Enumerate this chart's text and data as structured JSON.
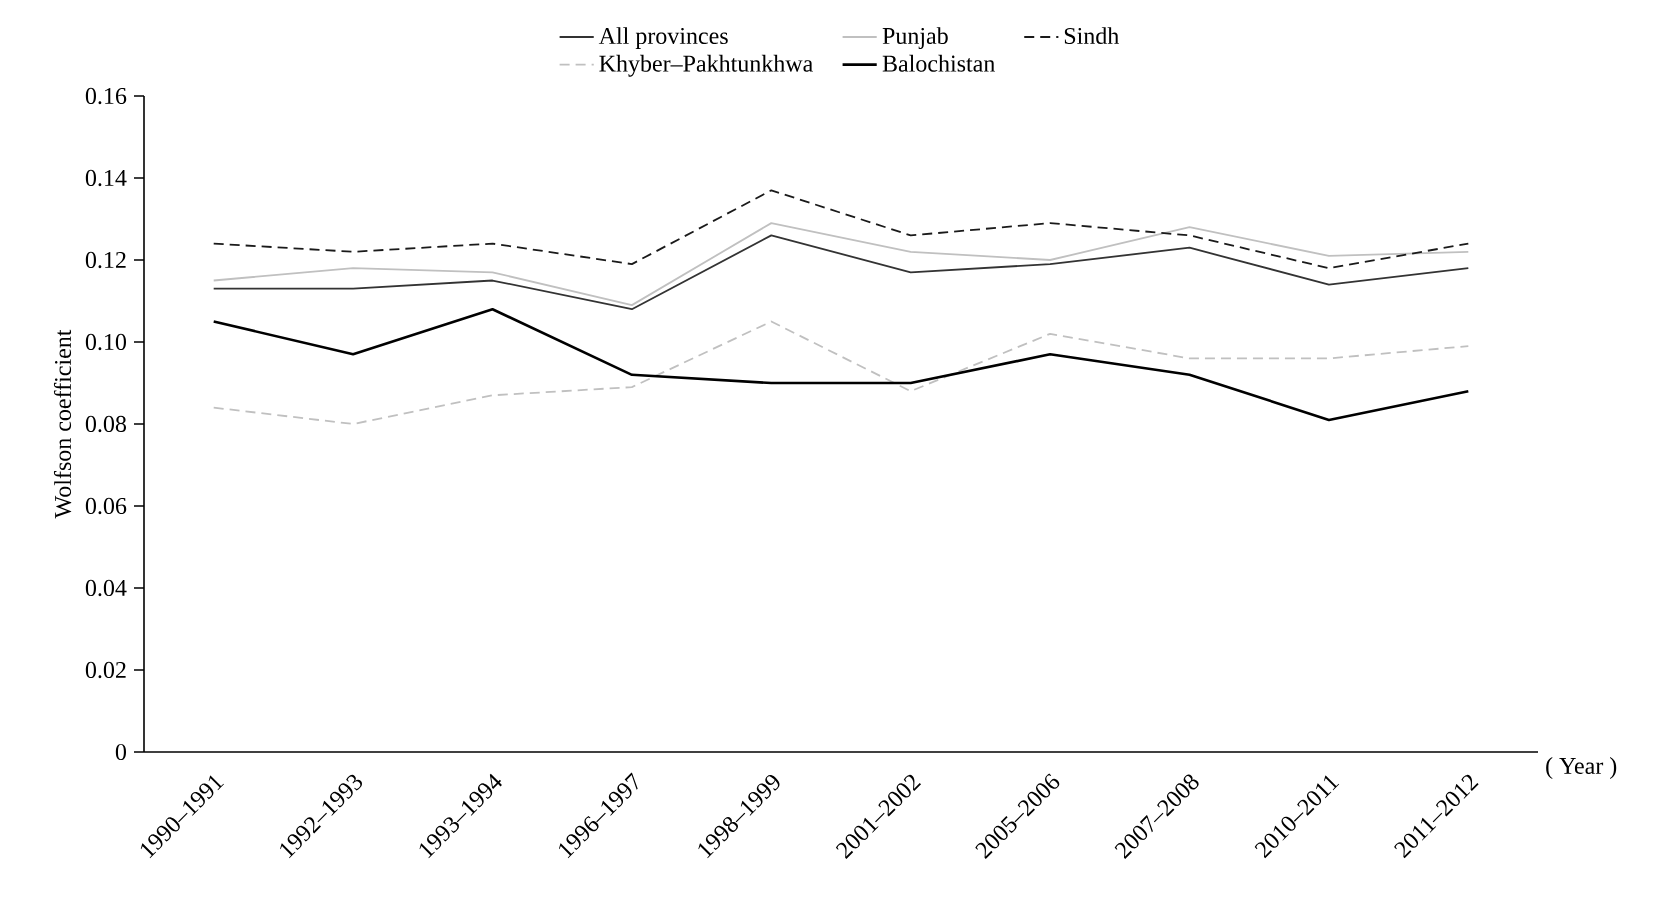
{
  "chart_data": {
    "type": "line",
    "xlabel": "( Year )",
    "ylabel": "Wolfson coefficient",
    "categories": [
      "1990–1991",
      "1992–1993",
      "1993–1994",
      "1996–1997",
      "1998–1999",
      "2001–2002",
      "2005–2006",
      "2007–2008",
      "2010–2011",
      "2011–2012"
    ],
    "series": [
      {
        "name": "All provinces",
        "color": "#333333",
        "line_style": "solid",
        "values": [
          0.113,
          0.113,
          0.115,
          0.108,
          0.126,
          0.117,
          0.119,
          0.123,
          0.114,
          0.118
        ]
      },
      {
        "name": "Punjab",
        "color": "#c0c0c0",
        "line_style": "solid",
        "values": [
          0.115,
          0.118,
          0.117,
          0.109,
          0.129,
          0.122,
          0.12,
          0.128,
          0.121,
          0.122
        ]
      },
      {
        "name": "Sindh",
        "color": "#1a1a1a",
        "line_style": "dashed",
        "values": [
          0.124,
          0.122,
          0.124,
          0.119,
          0.137,
          0.126,
          0.129,
          0.126,
          0.118,
          0.124
        ]
      },
      {
        "name": "Khyber–Pakhtunkhwa",
        "color": "#c0c0c0",
        "line_style": "dashed",
        "values": [
          0.084,
          0.08,
          0.087,
          0.089,
          0.105,
          0.088,
          0.102,
          0.096,
          0.096,
          0.099
        ]
      },
      {
        "name": "Balochistan",
        "color": "#000000",
        "line_style": "solid",
        "values": [
          0.105,
          0.097,
          0.108,
          0.092,
          0.09,
          0.09,
          0.097,
          0.092,
          0.081,
          0.088
        ]
      }
    ],
    "ylim": [
      0,
      0.16
    ],
    "yticks": [
      0,
      0.02,
      0.04,
      0.06,
      0.08,
      {
        "value": 0.1,
        "label": "0.10"
      },
      0.12,
      0.14,
      0.16
    ],
    "grid": false,
    "legend": "top",
    "marker": "none"
  }
}
